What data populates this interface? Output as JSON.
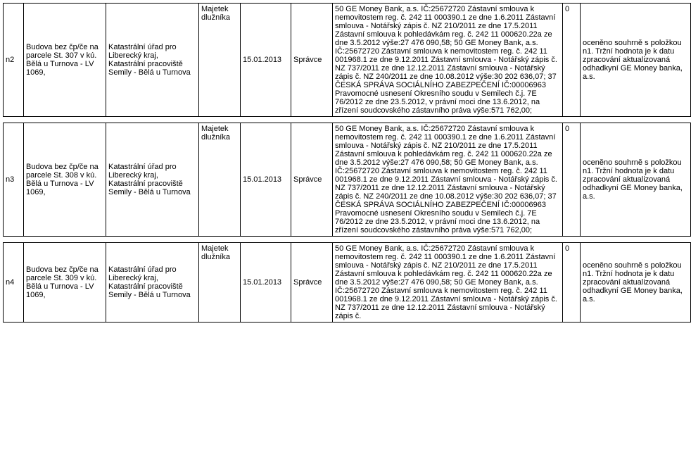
{
  "rows": [
    {
      "id": "n2",
      "property": "Budova bez čp/če na parcele St. 307 v kú. Bělá u Turnova - LV 1069,",
      "office": "Katastrální úřad pro Liberecký kraj, Katastrální pracoviště Semily - Bělá u Turnova",
      "majetek": "Majetek dlužníka",
      "date": "15.01.2013",
      "role": "Správce",
      "long": "50 GE Money Bank, a.s. IČ:25672720 Zástavní smlouva k nemovitostem reg. č. 242 11 000390.1 ze dne 1.6.2011 Zástavní smlouva - Notářský zápis č. NZ 210/2011 ze dne 17.5.2011 Zástavní smlouva k pohledávkám reg. č. 242 11 000620.22a ze dne 3.5.2012 výše:27 476 090,58; 50 GE Money Bank, a.s. IČ:25672720 Zástavní smlouva k nemovitostem reg. č. 242 11 001968.1 ze dne 9.12.2011 Zástavní smlouva - Notářský zápis č. NZ 737/2011 ze dne 12.12.2011 Zástavní smlouva - Notářský zápis č. NZ 240/2011 ze dne 10.08.2012 výše:30 202 636,07; 37 ČESKÁ SPRÁVA SOCIÁLNÍHO ZABEZPEČENÍ IČ:00006963 Pravomocné usnesení Okresního soudu v Semilech č.j. 7E 76/2012 ze dne 23.5.2012, v právní moci dne 13.6.2012, na zřízení soudcovského zástavního práva výše:571 762,00;",
      "zero": "0",
      "note": "oceněno souhrně s položkou n1. Tržní hodnota je k datu zpracování aktualizovaná odhadkyní GE Money banka, a.s."
    },
    {
      "id": "n3",
      "property": "Budova bez čp/če na parcele St. 308 v kú. Bělá u Turnova - LV 1069,",
      "office": "Katastrální úřad pro Liberecký kraj, Katastrální pracoviště Semily - Bělá u Turnova",
      "majetek": "Majetek dlužníka",
      "date": "15.01.2013",
      "role": "Správce",
      "long": "50 GE Money Bank, a.s. IČ:25672720 Zástavní smlouva k nemovitostem reg. č. 242 11 000390.1 ze dne 1.6.2011 Zástavní smlouva - Notářský zápis č. NZ 210/2011 ze dne 17.5.2011 Zástavní smlouva k pohledávkám reg. č. 242 11 000620.22a ze dne 3.5.2012 výše:27 476 090,58; 50 GE Money Bank, a.s. IČ:25672720 Zástavní smlouva k nemovitostem reg. č. 242 11 001968.1 ze dne 9.12.2011 Zástavní smlouva - Notářský zápis č. NZ 737/2011 ze dne 12.12.2011 Zástavní smlouva - Notářský zápis č. NZ 240/2011 ze dne 10.08.2012 výše:30 202 636,07; 37 ČESKÁ SPRÁVA SOCIÁLNÍHO ZABEZPEČENÍ IČ:00006963 Pravomocné usnesení Okresního soudu v Semilech č.j. 7E 76/2012 ze dne 23.5.2012, v právní moci dne 13.6.2012, na zřízení soudcovského zástavního práva výše:571 762,00;",
      "zero": "0",
      "note": "oceněno souhrně s položkou n1. Tržní hodnota je k datu zpracování aktualizovaná odhadkyní GE Money banka, a.s."
    },
    {
      "id": "n4",
      "property": "Budova bez čp/če na parcele St. 309 v kú. Bělá u Turnova - LV 1069,",
      "office": "Katastrální úřad pro Liberecký kraj, Katastrální pracoviště Semily - Bělá u Turnova",
      "majetek": "Majetek dlužníka",
      "date": "15.01.2013",
      "role": "Správce",
      "long": "50 GE Money Bank, a.s. IČ:25672720 Zástavní smlouva k nemovitostem reg. č. 242 11 000390.1 ze dne 1.6.2011 Zástavní smlouva - Notářský zápis č. NZ 210/2011 ze dne 17.5.2011 Zástavní smlouva k pohledávkám reg. č. 242 11 000620.22a ze dne 3.5.2012 výše:27 476 090,58; 50 GE Money Bank, a.s. IČ:25672720 Zástavní smlouva k nemovitostem reg. č. 242 11 001968.1 ze dne 9.12.2011 Zástavní smlouva - Notářský zápis č. NZ 737/2011 ze dne 12.12.2011 Zástavní smlouva - Notářský zápis č.",
      "zero": "0",
      "note": "oceněno souhrně s položkou n1. Tržní hodnota je k datu zpracování aktualizovaná odhadkyní GE Money banka, a.s."
    }
  ]
}
